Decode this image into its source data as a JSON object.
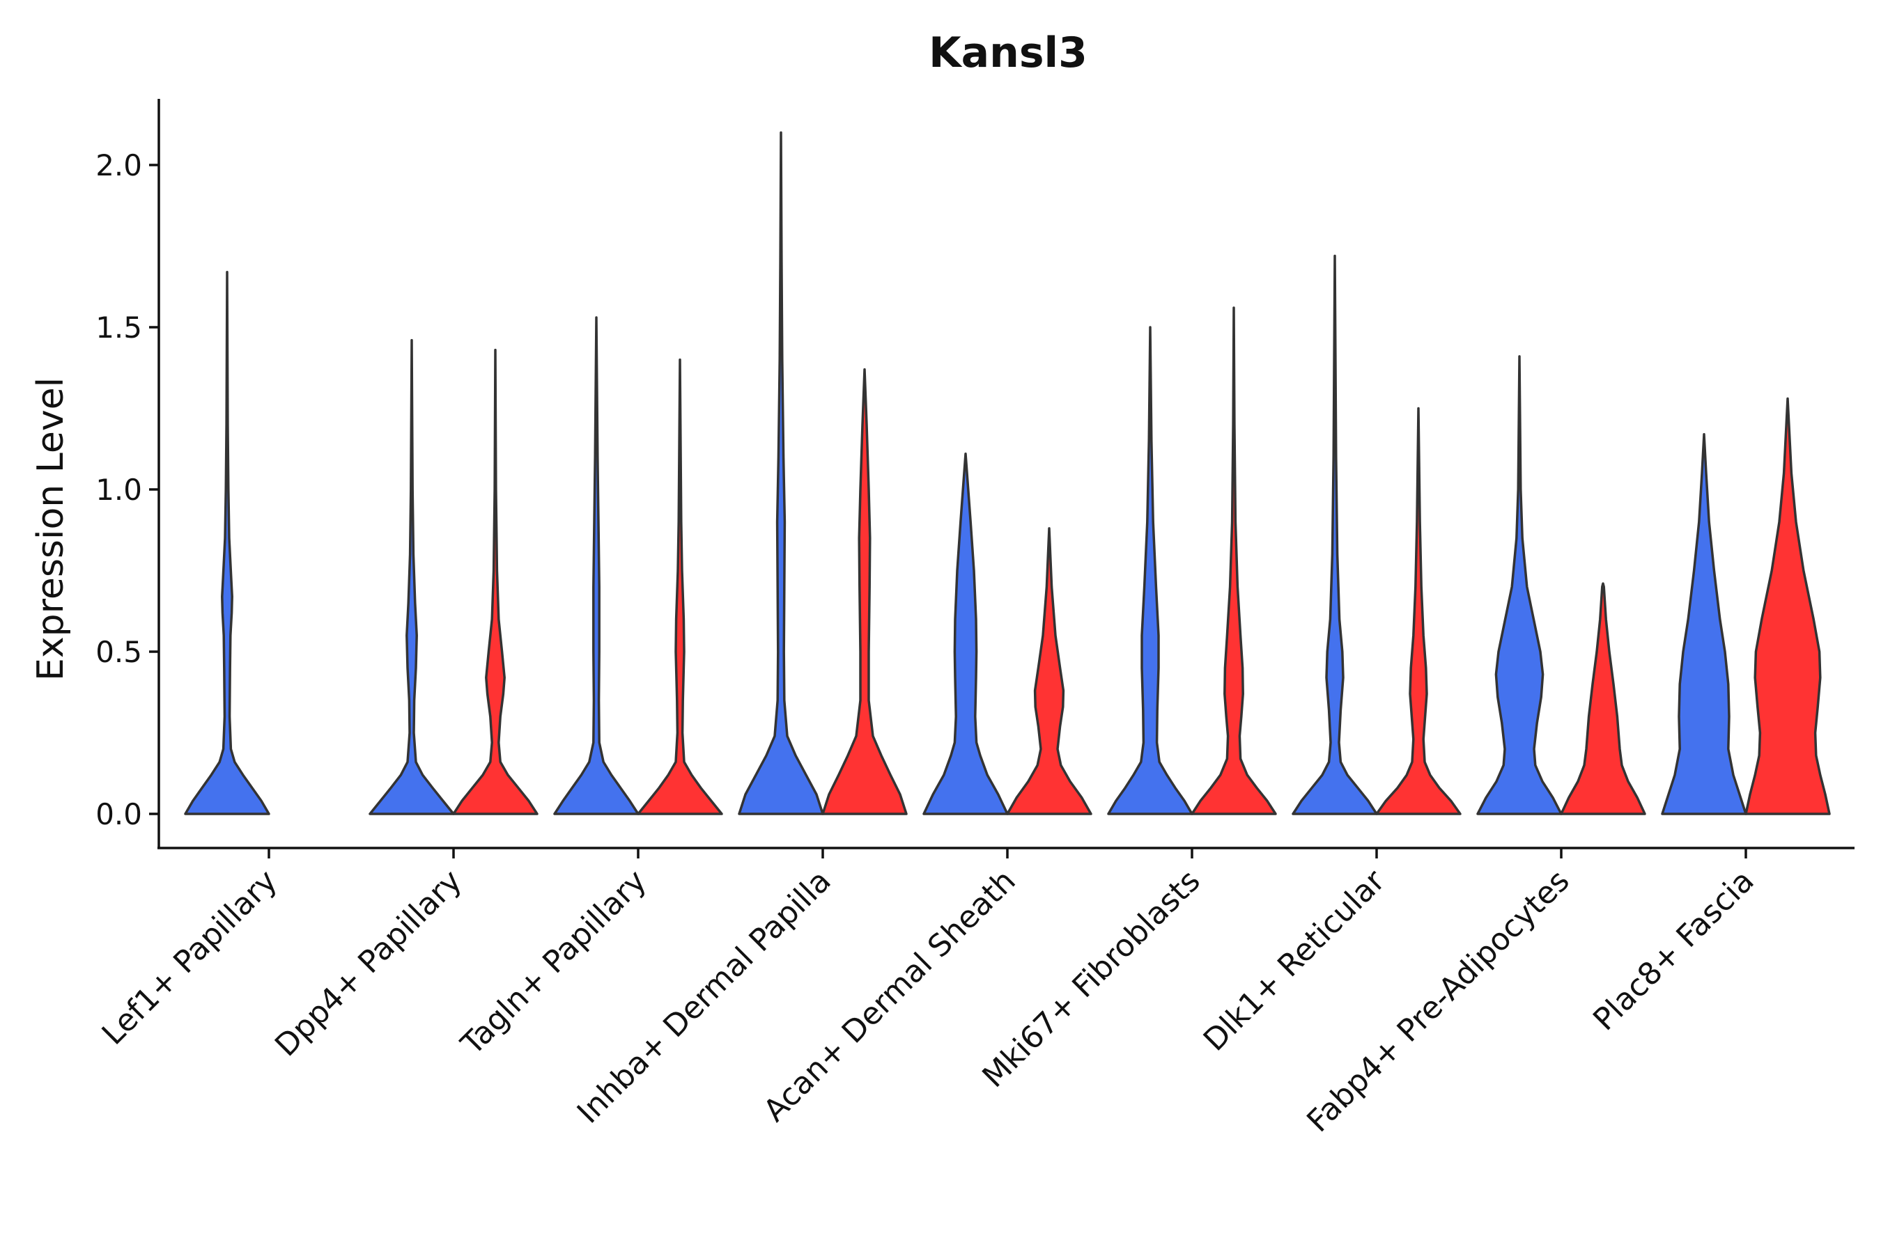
{
  "chart_data": {
    "type": "violin",
    "title": "Kansl3",
    "xlabel": "",
    "ylabel": "Expression Level",
    "ylim": [
      -0.1,
      2.2
    ],
    "yticks": [
      "0.0",
      "0.5",
      "1.0",
      "1.5",
      "2.0"
    ],
    "grid": false,
    "legend": "none",
    "colors": {
      "group1": "#4472ee",
      "group2": "#ff3333",
      "outline": "#333333"
    },
    "categories": [
      "Lef1+ Papillary",
      "Dpp4+ Papillary",
      "Tagln+ Papillary",
      "Inhba+ Dermal Papilla",
      "Acan+ Dermal Sheath",
      "Mki67+ Fibroblasts",
      "Dlk1+ Reticular",
      "Fabp4+ Pre-Adipocytes",
      "Plac8+ Fascia"
    ],
    "violins": [
      {
        "category": "Lef1+ Papillary",
        "group": "group1",
        "max": 1.67,
        "profile": [
          [
            0.0,
            1.0
          ],
          [
            0.04,
            0.82
          ],
          [
            0.08,
            0.6
          ],
          [
            0.12,
            0.38
          ],
          [
            0.16,
            0.18
          ],
          [
            0.2,
            0.09
          ],
          [
            0.3,
            0.06
          ],
          [
            0.45,
            0.07
          ],
          [
            0.55,
            0.08
          ],
          [
            0.62,
            0.11
          ],
          [
            0.67,
            0.12
          ],
          [
            0.72,
            0.1
          ],
          [
            0.85,
            0.05
          ],
          [
            1.0,
            0.03
          ],
          [
            1.2,
            0.015
          ],
          [
            1.67,
            0.0
          ]
        ]
      },
      {
        "category": "Dpp4+ Papillary",
        "group": "group1",
        "max": 1.46,
        "profile": [
          [
            0.0,
            1.0
          ],
          [
            0.04,
            0.75
          ],
          [
            0.08,
            0.5
          ],
          [
            0.12,
            0.26
          ],
          [
            0.16,
            0.1
          ],
          [
            0.25,
            0.05
          ],
          [
            0.35,
            0.06
          ],
          [
            0.45,
            0.1
          ],
          [
            0.55,
            0.12
          ],
          [
            0.65,
            0.08
          ],
          [
            0.8,
            0.04
          ],
          [
            1.0,
            0.02
          ],
          [
            1.46,
            0.0
          ]
        ]
      },
      {
        "category": "Dpp4+ Papillary",
        "group": "group2",
        "max": 1.43,
        "profile": [
          [
            0.0,
            1.0
          ],
          [
            0.04,
            0.8
          ],
          [
            0.08,
            0.55
          ],
          [
            0.12,
            0.3
          ],
          [
            0.16,
            0.12
          ],
          [
            0.22,
            0.08
          ],
          [
            0.3,
            0.12
          ],
          [
            0.37,
            0.19
          ],
          [
            0.42,
            0.22
          ],
          [
            0.5,
            0.16
          ],
          [
            0.6,
            0.08
          ],
          [
            0.75,
            0.04
          ],
          [
            1.0,
            0.015
          ],
          [
            1.43,
            0.0
          ]
        ]
      },
      {
        "category": "Tagln+ Papillary",
        "group": "group1",
        "max": 1.53,
        "profile": [
          [
            0.0,
            1.0
          ],
          [
            0.04,
            0.8
          ],
          [
            0.08,
            0.58
          ],
          [
            0.12,
            0.36
          ],
          [
            0.16,
            0.17
          ],
          [
            0.22,
            0.07
          ],
          [
            0.35,
            0.06
          ],
          [
            0.5,
            0.07
          ],
          [
            0.7,
            0.07
          ],
          [
            0.9,
            0.05
          ],
          [
            1.1,
            0.03
          ],
          [
            1.53,
            0.0
          ]
        ]
      },
      {
        "category": "Tagln+ Papillary",
        "group": "group2",
        "max": 1.4,
        "profile": [
          [
            0.0,
            1.0
          ],
          [
            0.04,
            0.75
          ],
          [
            0.08,
            0.5
          ],
          [
            0.12,
            0.28
          ],
          [
            0.16,
            0.1
          ],
          [
            0.25,
            0.06
          ],
          [
            0.35,
            0.07
          ],
          [
            0.5,
            0.1
          ],
          [
            0.6,
            0.09
          ],
          [
            0.75,
            0.05
          ],
          [
            0.9,
            0.03
          ],
          [
            1.4,
            0.0
          ]
        ]
      },
      {
        "category": "Inhba+ Dermal Papilla",
        "group": "group1",
        "max": 2.1,
        "profile": [
          [
            0.0,
            1.0
          ],
          [
            0.06,
            0.85
          ],
          [
            0.12,
            0.6
          ],
          [
            0.18,
            0.35
          ],
          [
            0.24,
            0.15
          ],
          [
            0.35,
            0.08
          ],
          [
            0.5,
            0.07
          ],
          [
            0.7,
            0.08
          ],
          [
            0.9,
            0.09
          ],
          [
            1.1,
            0.06
          ],
          [
            1.4,
            0.03
          ],
          [
            1.7,
            0.015
          ],
          [
            2.1,
            0.0
          ]
        ]
      },
      {
        "category": "Inhba+ Dermal Papilla",
        "group": "group2",
        "max": 1.37,
        "profile": [
          [
            0.0,
            1.0
          ],
          [
            0.06,
            0.85
          ],
          [
            0.12,
            0.62
          ],
          [
            0.18,
            0.4
          ],
          [
            0.24,
            0.2
          ],
          [
            0.35,
            0.1
          ],
          [
            0.5,
            0.1
          ],
          [
            0.7,
            0.12
          ],
          [
            0.85,
            0.13
          ],
          [
            1.0,
            0.1
          ],
          [
            1.2,
            0.05
          ],
          [
            1.37,
            0.0
          ]
        ]
      },
      {
        "category": "Acan+ Dermal Sheath",
        "group": "group1",
        "max": 1.11,
        "profile": [
          [
            0.0,
            1.0
          ],
          [
            0.06,
            0.78
          ],
          [
            0.12,
            0.52
          ],
          [
            0.18,
            0.35
          ],
          [
            0.22,
            0.26
          ],
          [
            0.3,
            0.23
          ],
          [
            0.42,
            0.25
          ],
          [
            0.5,
            0.26
          ],
          [
            0.6,
            0.25
          ],
          [
            0.75,
            0.2
          ],
          [
            0.9,
            0.12
          ],
          [
            1.11,
            0.0
          ]
        ]
      },
      {
        "category": "Acan+ Dermal Sheath",
        "group": "group2",
        "max": 0.88,
        "profile": [
          [
            0.0,
            1.0
          ],
          [
            0.05,
            0.78
          ],
          [
            0.1,
            0.5
          ],
          [
            0.15,
            0.28
          ],
          [
            0.2,
            0.2
          ],
          [
            0.27,
            0.26
          ],
          [
            0.33,
            0.33
          ],
          [
            0.38,
            0.34
          ],
          [
            0.45,
            0.26
          ],
          [
            0.55,
            0.15
          ],
          [
            0.7,
            0.06
          ],
          [
            0.88,
            0.0
          ]
        ]
      },
      {
        "category": "Mki67+ Fibroblasts",
        "group": "group1",
        "max": 1.5,
        "profile": [
          [
            0.0,
            1.0
          ],
          [
            0.04,
            0.82
          ],
          [
            0.08,
            0.6
          ],
          [
            0.12,
            0.4
          ],
          [
            0.16,
            0.22
          ],
          [
            0.22,
            0.16
          ],
          [
            0.32,
            0.17
          ],
          [
            0.45,
            0.2
          ],
          [
            0.55,
            0.2
          ],
          [
            0.7,
            0.14
          ],
          [
            0.9,
            0.07
          ],
          [
            1.15,
            0.03
          ],
          [
            1.5,
            0.0
          ]
        ]
      },
      {
        "category": "Mki67+ Fibroblasts",
        "group": "group2",
        "max": 1.56,
        "profile": [
          [
            0.0,
            1.0
          ],
          [
            0.04,
            0.8
          ],
          [
            0.08,
            0.55
          ],
          [
            0.12,
            0.32
          ],
          [
            0.17,
            0.16
          ],
          [
            0.24,
            0.14
          ],
          [
            0.3,
            0.18
          ],
          [
            0.37,
            0.22
          ],
          [
            0.45,
            0.21
          ],
          [
            0.55,
            0.16
          ],
          [
            0.7,
            0.09
          ],
          [
            0.9,
            0.04
          ],
          [
            1.2,
            0.015
          ],
          [
            1.56,
            0.0
          ]
        ]
      },
      {
        "category": "Dlk1+ Reticular",
        "group": "group1",
        "max": 1.72,
        "profile": [
          [
            0.0,
            1.0
          ],
          [
            0.04,
            0.8
          ],
          [
            0.08,
            0.55
          ],
          [
            0.12,
            0.3
          ],
          [
            0.16,
            0.14
          ],
          [
            0.22,
            0.1
          ],
          [
            0.32,
            0.14
          ],
          [
            0.42,
            0.2
          ],
          [
            0.5,
            0.18
          ],
          [
            0.6,
            0.11
          ],
          [
            0.8,
            0.06
          ],
          [
            1.1,
            0.03
          ],
          [
            1.72,
            0.0
          ]
        ]
      },
      {
        "category": "Dlk1+ Reticular",
        "group": "group2",
        "max": 1.25,
        "profile": [
          [
            0.0,
            1.0
          ],
          [
            0.04,
            0.78
          ],
          [
            0.08,
            0.5
          ],
          [
            0.12,
            0.28
          ],
          [
            0.16,
            0.15
          ],
          [
            0.23,
            0.12
          ],
          [
            0.3,
            0.16
          ],
          [
            0.37,
            0.2
          ],
          [
            0.45,
            0.18
          ],
          [
            0.55,
            0.12
          ],
          [
            0.7,
            0.07
          ],
          [
            0.9,
            0.035
          ],
          [
            1.25,
            0.0
          ]
        ]
      },
      {
        "category": "Fabp4+ Pre-Adipocytes",
        "group": "group1",
        "max": 1.41,
        "profile": [
          [
            0.0,
            1.0
          ],
          [
            0.05,
            0.8
          ],
          [
            0.1,
            0.55
          ],
          [
            0.15,
            0.38
          ],
          [
            0.2,
            0.35
          ],
          [
            0.28,
            0.42
          ],
          [
            0.36,
            0.52
          ],
          [
            0.43,
            0.56
          ],
          [
            0.5,
            0.5
          ],
          [
            0.6,
            0.34
          ],
          [
            0.7,
            0.18
          ],
          [
            0.85,
            0.07
          ],
          [
            1.0,
            0.03
          ],
          [
            1.41,
            0.0
          ]
        ]
      },
      {
        "category": "Fabp4+ Pre-Adipocytes",
        "group": "group2",
        "max": 0.71,
        "profile": [
          [
            0.0,
            1.0
          ],
          [
            0.05,
            0.82
          ],
          [
            0.1,
            0.6
          ],
          [
            0.15,
            0.45
          ],
          [
            0.2,
            0.4
          ],
          [
            0.3,
            0.34
          ],
          [
            0.4,
            0.25
          ],
          [
            0.5,
            0.15
          ],
          [
            0.6,
            0.07
          ],
          [
            0.7,
            0.02
          ],
          [
            0.71,
            0.0
          ]
        ]
      },
      {
        "category": "Plac8+ Fascia",
        "group": "group1",
        "max": 1.17,
        "profile": [
          [
            0.0,
            1.0
          ],
          [
            0.06,
            0.85
          ],
          [
            0.12,
            0.7
          ],
          [
            0.2,
            0.58
          ],
          [
            0.3,
            0.6
          ],
          [
            0.4,
            0.58
          ],
          [
            0.5,
            0.5
          ],
          [
            0.6,
            0.38
          ],
          [
            0.75,
            0.24
          ],
          [
            0.9,
            0.12
          ],
          [
            1.05,
            0.05
          ],
          [
            1.17,
            0.0
          ]
        ]
      },
      {
        "category": "Plac8+ Fascia",
        "group": "group2",
        "max": 1.28,
        "profile": [
          [
            0.0,
            1.0
          ],
          [
            0.06,
            0.9
          ],
          [
            0.12,
            0.78
          ],
          [
            0.18,
            0.68
          ],
          [
            0.25,
            0.66
          ],
          [
            0.33,
            0.72
          ],
          [
            0.42,
            0.78
          ],
          [
            0.5,
            0.76
          ],
          [
            0.6,
            0.62
          ],
          [
            0.75,
            0.38
          ],
          [
            0.9,
            0.2
          ],
          [
            1.05,
            0.09
          ],
          [
            1.28,
            0.0
          ]
        ]
      }
    ]
  }
}
